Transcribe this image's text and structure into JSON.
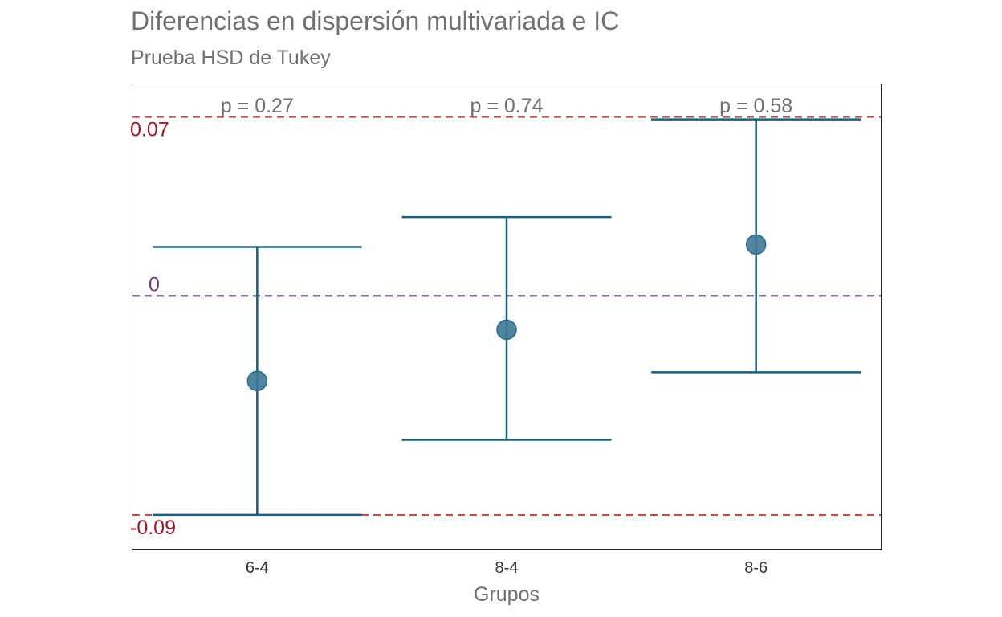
{
  "chart_data": {
    "type": "errorbar",
    "title": "Diferencias en dispersión multivariada e IC",
    "subtitle": "Prueba HSD de Tukey",
    "xlabel": "Grupos",
    "ylabel": "",
    "categories": [
      "6-4",
      "8-4",
      "8-6"
    ],
    "diff": [
      -0.034,
      -0.0135,
      0.0205
    ],
    "lower": [
      -0.0875,
      -0.0575,
      -0.0305
    ],
    "upper": [
      0.0195,
      0.0315,
      0.0705
    ],
    "p_labels": [
      "p =  0.27",
      "p =  0.74",
      "p =  0.58"
    ],
    "reference_lines": [
      {
        "value": 0.0715,
        "label": "0.07",
        "color": "#c0504d",
        "label_color": "#a31521"
      },
      {
        "value": 0,
        "label": "0",
        "color": "#6a3d8a",
        "label_color": "#6a3d8a"
      },
      {
        "value": -0.0875,
        "label": "-0.09",
        "color": "#c0504d",
        "label_color": "#a31521"
      }
    ],
    "ylim": [
      -0.101,
      0.0845
    ],
    "grid": false,
    "colors": {
      "errorbar": "#1a5f80",
      "point": "#3e7895",
      "text": "#707070"
    }
  }
}
